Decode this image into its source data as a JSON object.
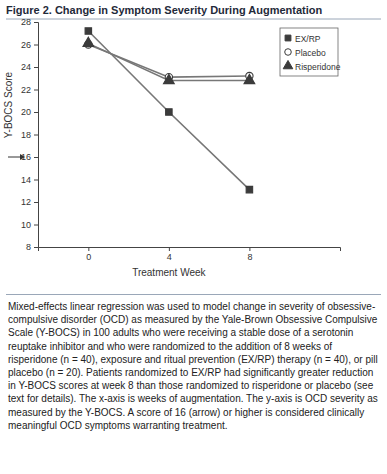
{
  "chart_data": {
    "type": "line",
    "title": "Figure 2. Change in Symptom Severity During Augmentation",
    "x_label": "Treatment Week",
    "y_label": "Y-BOCS Score",
    "x": [
      0,
      4,
      8
    ],
    "xlim": [
      -2.5,
      12.5
    ],
    "xticks": [
      0,
      4,
      8
    ],
    "ylim": [
      8,
      28
    ],
    "yticks": [
      8,
      10,
      12,
      14,
      16,
      18,
      20,
      22,
      24,
      26,
      28
    ],
    "grid": false,
    "legend": "upper right",
    "series": [
      {
        "name": "EX/RP",
        "color": "#3b3b3b",
        "marker": "square",
        "line_style": "solid",
        "values": [
          27.2,
          20.0,
          13.1
        ]
      },
      {
        "name": "Placebo",
        "color": "#3b3b3b",
        "marker": "circle-open",
        "line_style": "solid",
        "values": [
          26.0,
          23.1,
          23.2
        ]
      },
      {
        "name": "Risperidone",
        "color": "#3b3b3b",
        "marker": "triangle",
        "line_style": "solid",
        "values": [
          26.1,
          22.8,
          22.8
        ]
      }
    ],
    "annotations": [
      {
        "y": 16
      }
    ],
    "caption": "Mixed-effects linear regression was used to model change in severity of obsessive-compulsive disorder (OCD) as measured by the Yale-Brown Obsessive Compulsive Scale (Y-BOCS) in 100 adults who were receiving a stable dose of a serotonin reuptake inhibitor and who were randomized to the addition of 8 weeks of risperidone (n = 40), exposure and ritual prevention (EX/RP) therapy (n = 40), or pill placebo (n = 20). Patients randomized to EX/RP had significantly greater reduction in Y-BOCS scores at week 8 than those randomized to risperidone or placebo (see text for details). The x-axis is weeks of augmentation. The y-axis is OCD severity as measured by the Y-BOCS. A score of 16 (arrow) or higher is considered clinically meaningful OCD symptoms warranting treatment."
  }
}
